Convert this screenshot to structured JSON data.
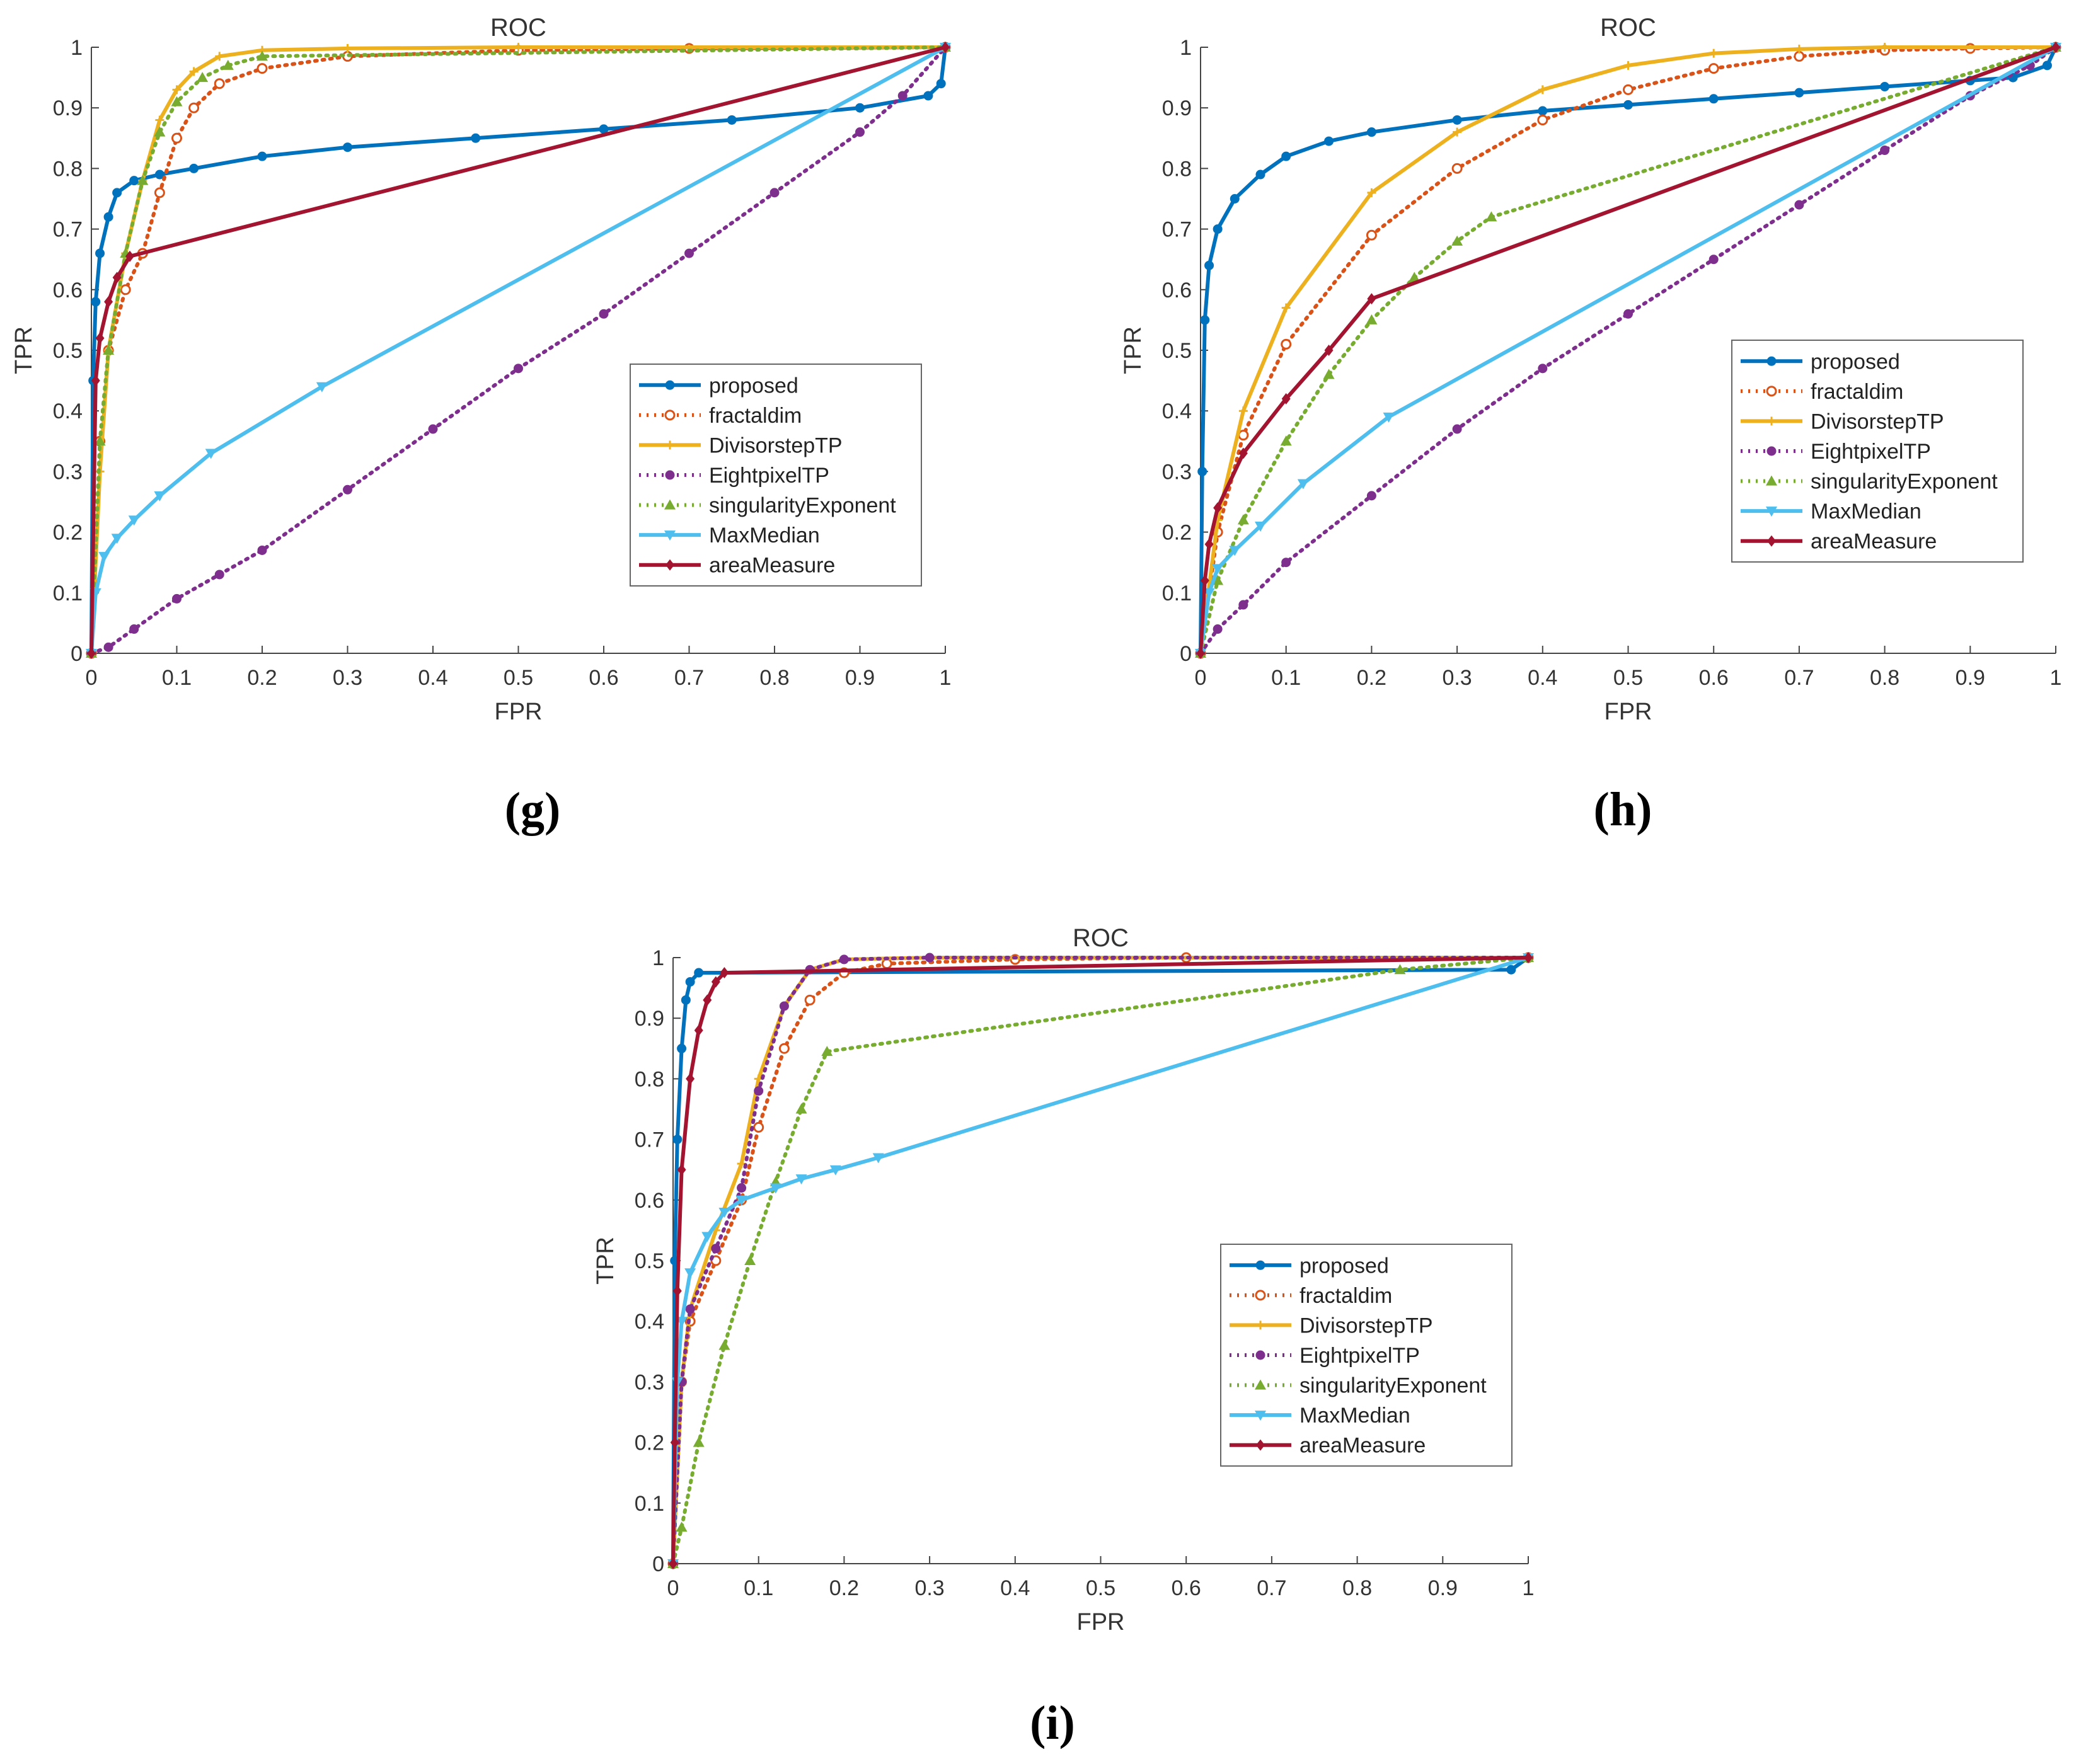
{
  "figure_labels": [
    "(g)",
    "(h)",
    "(i)"
  ],
  "series_styles": {
    "proposed": {
      "color": "#0072BD",
      "dash": "solid",
      "marker": "circle"
    },
    "fractaldim": {
      "color": "#D95319",
      "dash": "dotted",
      "marker": "ocircle"
    },
    "DivisorstepTP": {
      "color": "#EDB120",
      "dash": "solid",
      "marker": "plus"
    },
    "EightpixelTP": {
      "color": "#7E2F8E",
      "dash": "dotted",
      "marker": "circle"
    },
    "singularityExponent": {
      "color": "#77AC30",
      "dash": "dotted",
      "marker": "triangle-up"
    },
    "MaxMedian": {
      "color": "#4DBEEE",
      "dash": "solid",
      "marker": "triangle-down"
    },
    "areaMeasure": {
      "color": "#A2142F",
      "dash": "solid",
      "marker": "diamond"
    }
  },
  "chart_data": [
    {
      "panel": "(g)",
      "type": "line",
      "title": "ROC",
      "xlabel": "FPR",
      "ylabel": "TPR",
      "xlim": [
        0,
        1
      ],
      "ylim": [
        0,
        1
      ],
      "xticks": [
        "0",
        "0.1",
        "0.2",
        "0.3",
        "0.4",
        "0.5",
        "0.6",
        "0.7",
        "0.8",
        "0.9",
        "1"
      ],
      "yticks": [
        "0",
        "0.1",
        "0.2",
        "0.3",
        "0.4",
        "0.5",
        "0.6",
        "0.7",
        "0.8",
        "0.9",
        "1"
      ],
      "legend": "center-right",
      "series": [
        {
          "name": "proposed",
          "x": [
            0,
            0.002,
            0.005,
            0.01,
            0.02,
            0.03,
            0.05,
            0.08,
            0.12,
            0.2,
            0.3,
            0.45,
            0.6,
            0.75,
            0.9,
            0.98,
            0.995,
            1
          ],
          "y": [
            0,
            0.45,
            0.58,
            0.66,
            0.72,
            0.76,
            0.78,
            0.79,
            0.8,
            0.82,
            0.835,
            0.85,
            0.865,
            0.88,
            0.9,
            0.92,
            0.94,
            1
          ]
        },
        {
          "name": "fractaldim",
          "x": [
            0,
            0.01,
            0.02,
            0.04,
            0.06,
            0.08,
            0.1,
            0.12,
            0.15,
            0.2,
            0.3,
            0.5,
            0.7,
            1
          ],
          "y": [
            0,
            0.35,
            0.5,
            0.6,
            0.66,
            0.76,
            0.85,
            0.9,
            0.94,
            0.965,
            0.985,
            0.995,
            0.998,
            1
          ]
        },
        {
          "name": "DivisorstepTP",
          "x": [
            0,
            0.01,
            0.02,
            0.04,
            0.06,
            0.08,
            0.1,
            0.12,
            0.15,
            0.2,
            0.3,
            0.5,
            1
          ],
          "y": [
            0,
            0.3,
            0.5,
            0.66,
            0.78,
            0.88,
            0.93,
            0.96,
            0.985,
            0.995,
            0.998,
            1,
            1
          ]
        },
        {
          "name": "EightpixelTP",
          "x": [
            0,
            0.02,
            0.05,
            0.1,
            0.15,
            0.2,
            0.3,
            0.4,
            0.5,
            0.6,
            0.7,
            0.8,
            0.9,
            0.95,
            1
          ],
          "y": [
            0,
            0.01,
            0.04,
            0.09,
            0.13,
            0.17,
            0.27,
            0.37,
            0.47,
            0.56,
            0.66,
            0.76,
            0.86,
            0.92,
            1
          ]
        },
        {
          "name": "singularityExponent",
          "x": [
            0,
            0.01,
            0.02,
            0.04,
            0.06,
            0.08,
            0.1,
            0.13,
            0.16,
            0.2,
            1
          ],
          "y": [
            0,
            0.35,
            0.5,
            0.66,
            0.78,
            0.86,
            0.91,
            0.95,
            0.97,
            0.985,
            1
          ]
        },
        {
          "name": "MaxMedian",
          "x": [
            0,
            0.005,
            0.015,
            0.03,
            0.05,
            0.08,
            0.14,
            0.27,
            1
          ],
          "y": [
            0,
            0.1,
            0.16,
            0.19,
            0.22,
            0.26,
            0.33,
            0.44,
            1
          ]
        },
        {
          "name": "areaMeasure",
          "x": [
            0,
            0.005,
            0.01,
            0.02,
            0.03,
            0.045,
            1
          ],
          "y": [
            0,
            0.45,
            0.52,
            0.58,
            0.62,
            0.655,
            1
          ]
        }
      ]
    },
    {
      "panel": "(h)",
      "type": "line",
      "title": "ROC",
      "xlabel": "FPR",
      "ylabel": "TPR",
      "xlim": [
        0,
        1
      ],
      "ylim": [
        0,
        1
      ],
      "xticks": [
        "0",
        "0.1",
        "0.2",
        "0.3",
        "0.4",
        "0.5",
        "0.6",
        "0.7",
        "0.8",
        "0.9",
        "1"
      ],
      "yticks": [
        "0",
        "0.1",
        "0.2",
        "0.3",
        "0.4",
        "0.5",
        "0.6",
        "0.7",
        "0.8",
        "0.9",
        "1"
      ],
      "legend": "center-right",
      "series": [
        {
          "name": "proposed",
          "x": [
            0,
            0.002,
            0.005,
            0.01,
            0.02,
            0.04,
            0.07,
            0.1,
            0.15,
            0.2,
            0.3,
            0.4,
            0.5,
            0.6,
            0.7,
            0.8,
            0.9,
            0.95,
            0.99,
            1
          ],
          "y": [
            0,
            0.3,
            0.55,
            0.64,
            0.7,
            0.75,
            0.79,
            0.82,
            0.845,
            0.86,
            0.88,
            0.895,
            0.905,
            0.915,
            0.925,
            0.935,
            0.945,
            0.95,
            0.97,
            1
          ]
        },
        {
          "name": "fractaldim",
          "x": [
            0,
            0.02,
            0.05,
            0.1,
            0.2,
            0.3,
            0.4,
            0.5,
            0.6,
            0.7,
            0.8,
            0.9,
            1
          ],
          "y": [
            0,
            0.2,
            0.36,
            0.51,
            0.69,
            0.8,
            0.88,
            0.93,
            0.965,
            0.985,
            0.995,
            0.998,
            1
          ]
        },
        {
          "name": "DivisorstepTP",
          "x": [
            0,
            0.02,
            0.05,
            0.1,
            0.2,
            0.3,
            0.4,
            0.5,
            0.6,
            0.7,
            0.8,
            1
          ],
          "y": [
            0,
            0.22,
            0.4,
            0.57,
            0.76,
            0.86,
            0.93,
            0.97,
            0.99,
            0.997,
            1,
            1
          ]
        },
        {
          "name": "EightpixelTP",
          "x": [
            0,
            0.02,
            0.05,
            0.1,
            0.2,
            0.3,
            0.4,
            0.5,
            0.6,
            0.7,
            0.8,
            0.9,
            0.97,
            1
          ],
          "y": [
            0,
            0.04,
            0.08,
            0.15,
            0.26,
            0.37,
            0.47,
            0.56,
            0.65,
            0.74,
            0.83,
            0.92,
            0.97,
            1
          ]
        },
        {
          "name": "singularityExponent",
          "x": [
            0,
            0.02,
            0.05,
            0.1,
            0.15,
            0.2,
            0.25,
            0.3,
            0.34,
            1
          ],
          "y": [
            0,
            0.12,
            0.22,
            0.35,
            0.46,
            0.55,
            0.62,
            0.68,
            0.72,
            1
          ]
        },
        {
          "name": "MaxMedian",
          "x": [
            0,
            0.01,
            0.02,
            0.04,
            0.07,
            0.12,
            0.22,
            1
          ],
          "y": [
            0,
            0.1,
            0.14,
            0.17,
            0.21,
            0.28,
            0.39,
            1
          ]
        },
        {
          "name": "areaMeasure",
          "x": [
            0,
            0.005,
            0.01,
            0.02,
            0.05,
            0.1,
            0.15,
            0.2,
            1
          ],
          "y": [
            0,
            0.12,
            0.18,
            0.24,
            0.33,
            0.42,
            0.5,
            0.585,
            1
          ]
        }
      ]
    },
    {
      "panel": "(i)",
      "type": "line",
      "title": "ROC",
      "xlabel": "FPR",
      "ylabel": "TPR",
      "xlim": [
        0,
        1
      ],
      "ylim": [
        0,
        1
      ],
      "xticks": [
        "0",
        "0.1",
        "0.2",
        "0.3",
        "0.4",
        "0.5",
        "0.6",
        "0.7",
        "0.8",
        "0.9",
        "1"
      ],
      "yticks": [
        "0",
        "0.1",
        "0.2",
        "0.3",
        "0.4",
        "0.5",
        "0.6",
        "0.7",
        "0.8",
        "0.9",
        "1"
      ],
      "legend": "center-right",
      "series": [
        {
          "name": "proposed",
          "x": [
            0,
            0.002,
            0.005,
            0.01,
            0.015,
            0.02,
            0.03,
            0.98,
            1
          ],
          "y": [
            0,
            0.5,
            0.7,
            0.85,
            0.93,
            0.96,
            0.975,
            0.98,
            1
          ]
        },
        {
          "name": "fractaldim",
          "x": [
            0,
            0.01,
            0.02,
            0.05,
            0.08,
            0.1,
            0.13,
            0.16,
            0.2,
            0.25,
            0.4,
            0.6,
            1
          ],
          "y": [
            0,
            0.3,
            0.4,
            0.5,
            0.6,
            0.72,
            0.85,
            0.93,
            0.975,
            0.99,
            0.997,
            1,
            1
          ]
        },
        {
          "name": "DivisorstepTP",
          "x": [
            0,
            0.01,
            0.02,
            0.05,
            0.08,
            0.1,
            0.13,
            0.16,
            0.2,
            0.3,
            1
          ],
          "y": [
            0,
            0.3,
            0.42,
            0.55,
            0.66,
            0.8,
            0.92,
            0.98,
            0.997,
            1,
            1
          ]
        },
        {
          "name": "EightpixelTP",
          "x": [
            0,
            0.01,
            0.02,
            0.05,
            0.08,
            0.1,
            0.13,
            0.16,
            0.2,
            0.3,
            1
          ],
          "y": [
            0,
            0.3,
            0.42,
            0.52,
            0.62,
            0.78,
            0.92,
            0.98,
            0.997,
            1,
            1
          ]
        },
        {
          "name": "singularityExponent",
          "x": [
            0,
            0.01,
            0.03,
            0.06,
            0.09,
            0.12,
            0.15,
            0.18,
            0.85,
            1
          ],
          "y": [
            0,
            0.06,
            0.2,
            0.36,
            0.5,
            0.63,
            0.75,
            0.845,
            0.98,
            1
          ]
        },
        {
          "name": "MaxMedian",
          "x": [
            0,
            0.005,
            0.01,
            0.02,
            0.04,
            0.06,
            0.08,
            0.12,
            0.15,
            0.19,
            0.24,
            1
          ],
          "y": [
            0,
            0.3,
            0.4,
            0.48,
            0.54,
            0.58,
            0.6,
            0.62,
            0.635,
            0.65,
            0.67,
            1
          ]
        },
        {
          "name": "areaMeasure",
          "x": [
            0,
            0.002,
            0.005,
            0.01,
            0.02,
            0.03,
            0.04,
            0.05,
            0.06,
            1
          ],
          "y": [
            0,
            0.2,
            0.45,
            0.65,
            0.8,
            0.88,
            0.93,
            0.96,
            0.975,
            1
          ]
        }
      ]
    }
  ]
}
